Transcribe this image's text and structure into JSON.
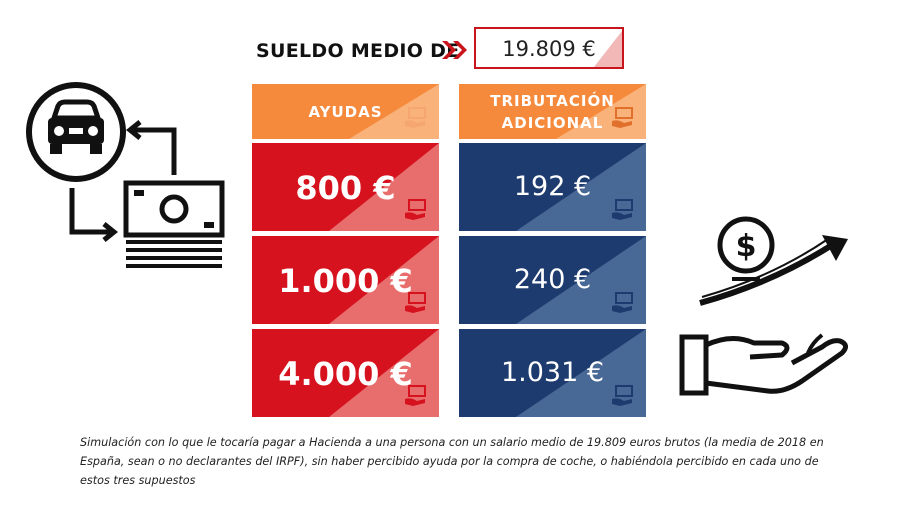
{
  "header": {
    "label": "SUELDO MEDIO DE",
    "value": "19.809 €"
  },
  "columns": {
    "ayudas": {
      "title": "AYUDAS",
      "rows": [
        "800 €",
        "1.000 €",
        "4.000 €"
      ]
    },
    "tributacion": {
      "title_line1": "TRIBUTACIÓN",
      "title_line2": "ADICIONAL",
      "rows": [
        "192 €",
        "240 €",
        "1.031 €"
      ]
    }
  },
  "icons": [
    "car-icon",
    "cash-stack-icon",
    "arrow-cycle-icon",
    "hand-coin-growth-icon",
    "hand-money-icon"
  ],
  "colors": {
    "red": "#d6121e",
    "navy": "#1d3b6e",
    "orange": "#f68a3c"
  },
  "footnote": "Simulación con lo que le tocaría pagar a Hacienda a una persona con un salario medio de 19.809 euros brutos (la media de 2018 en España, sean o no declarantes del IRPF), sin haber percibido ayuda por la compra de coche, o habiéndola percibido en cada uno de estos tres supuestos"
}
